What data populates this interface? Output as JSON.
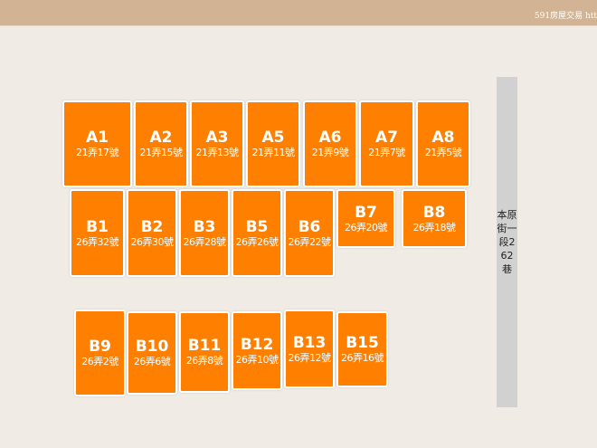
{
  "header": {
    "text": "591房屋交易 htt"
  },
  "street": {
    "label": "本原街一段262巷"
  },
  "colors": {
    "unit": "#ff8000",
    "header": "#d2b494",
    "background": "#f1ebe5",
    "street": "#d1d1d1"
  },
  "units": [
    {
      "code": "A1",
      "addr": "21弄17號"
    },
    {
      "code": "A2",
      "addr": "21弄15號"
    },
    {
      "code": "A3",
      "addr": "21弄13號"
    },
    {
      "code": "A5",
      "addr": "21弄11號"
    },
    {
      "code": "A6",
      "addr": "21弄9號"
    },
    {
      "code": "A7",
      "addr": "21弄7號"
    },
    {
      "code": "A8",
      "addr": "21弄5號"
    },
    {
      "code": "B1",
      "addr": "26弄32號"
    },
    {
      "code": "B2",
      "addr": "26弄30號"
    },
    {
      "code": "B3",
      "addr": "26弄28號"
    },
    {
      "code": "B5",
      "addr": "26弄26號"
    },
    {
      "code": "B6",
      "addr": "26弄22號"
    },
    {
      "code": "B7",
      "addr": "26弄20號"
    },
    {
      "code": "B8",
      "addr": "26弄18號"
    },
    {
      "code": "B9",
      "addr": "26弄2號"
    },
    {
      "code": "B10",
      "addr": "26弄6號"
    },
    {
      "code": "B11",
      "addr": "26弄8號"
    },
    {
      "code": "B12",
      "addr": "26弄10號"
    },
    {
      "code": "B13",
      "addr": "26弄12號"
    },
    {
      "code": "B15",
      "addr": "26弄16號"
    }
  ]
}
